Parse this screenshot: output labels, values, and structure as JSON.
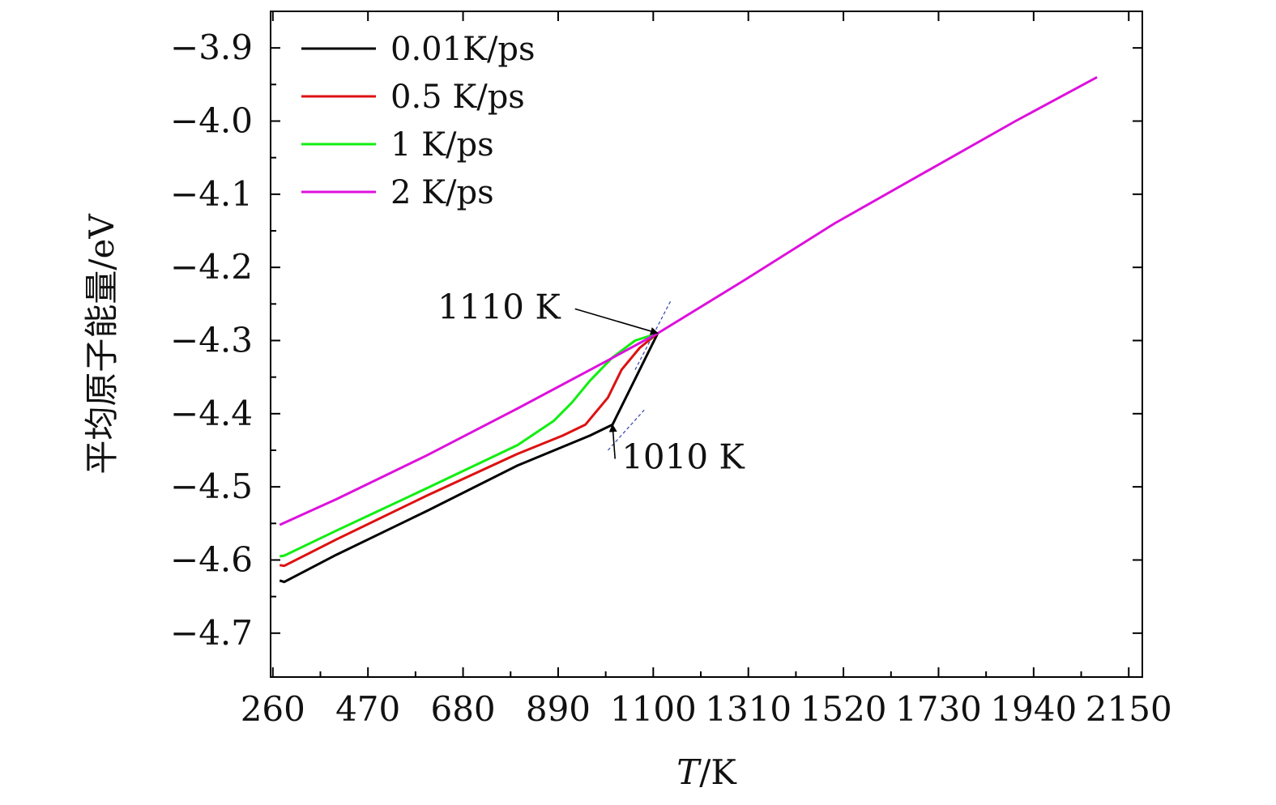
{
  "chart_data": {
    "type": "line",
    "xlabel_italic": "T",
    "xlabel_unit": "/K",
    "ylabel": "平均原子能量/eV",
    "xlim": [
      255,
      2180
    ],
    "ylim": [
      -4.76,
      -3.85
    ],
    "x_ticks": [
      260,
      470,
      680,
      890,
      1100,
      1310,
      1520,
      1730,
      1940,
      2150
    ],
    "x_tick_labels": [
      "260",
      "470",
      "680",
      "890",
      "1100",
      "1310",
      "1520",
      "1730",
      "1940",
      "2150"
    ],
    "y_ticks": [
      -3.9,
      -4.0,
      -4.1,
      -4.2,
      -4.3,
      -4.4,
      -4.5,
      -4.6,
      -4.7
    ],
    "y_tick_labels": [
      "−3.9",
      "−4.0",
      "−4.1",
      "−4.2",
      "−4.3",
      "−4.4",
      "−4.5",
      "−4.6",
      "−4.7"
    ],
    "legend_position": "top-left",
    "series": [
      {
        "name": "0.01K/ps",
        "color": "#000000",
        "points": [
          [
            275,
            -4.628
          ],
          [
            285,
            -4.63
          ],
          [
            400,
            -4.593
          ],
          [
            600,
            -4.533
          ],
          [
            800,
            -4.471
          ],
          [
            960,
            -4.43
          ],
          [
            1010,
            -4.415
          ],
          [
            1110,
            -4.29
          ]
        ]
      },
      {
        "name": "0.5 K/ps",
        "color": "#dd1111",
        "points": [
          [
            275,
            -4.607
          ],
          [
            285,
            -4.608
          ],
          [
            400,
            -4.572
          ],
          [
            600,
            -4.512
          ],
          [
            800,
            -4.455
          ],
          [
            900,
            -4.43
          ],
          [
            950,
            -4.415
          ],
          [
            1000,
            -4.378
          ],
          [
            1030,
            -4.34
          ],
          [
            1070,
            -4.31
          ],
          [
            1110,
            -4.29
          ]
        ]
      },
      {
        "name": "1 K/ps",
        "color": "#11ee11",
        "points": [
          [
            275,
            -4.595
          ],
          [
            285,
            -4.594
          ],
          [
            400,
            -4.56
          ],
          [
            600,
            -4.502
          ],
          [
            800,
            -4.443
          ],
          [
            880,
            -4.41
          ],
          [
            920,
            -4.385
          ],
          [
            960,
            -4.355
          ],
          [
            1010,
            -4.323
          ],
          [
            1060,
            -4.3
          ],
          [
            1110,
            -4.29
          ]
        ]
      },
      {
        "name": "2 K/ps",
        "color": "#dd11dd",
        "points": [
          [
            275,
            -4.552
          ],
          [
            400,
            -4.517
          ],
          [
            600,
            -4.457
          ],
          [
            800,
            -4.393
          ],
          [
            1000,
            -4.327
          ],
          [
            1110,
            -4.29
          ],
          [
            1300,
            -4.218
          ],
          [
            1500,
            -4.14
          ],
          [
            1700,
            -4.07
          ],
          [
            1900,
            -4.0
          ],
          [
            2080,
            -3.94
          ]
        ]
      }
    ],
    "guide_lines": [
      {
        "points": [
          [
            1060,
            -4.34
          ],
          [
            1140,
            -4.244
          ]
        ]
      },
      {
        "points": [
          [
            1000,
            -4.45
          ],
          [
            1080,
            -4.395
          ]
        ]
      }
    ],
    "annotations": [
      {
        "text": "1110 K",
        "point": [
          1110,
          -4.29
        ],
        "label_at": [
          895,
          -4.27
        ],
        "label_anchor": "end"
      },
      {
        "text": "1010 K",
        "point": [
          1010,
          -4.415
        ],
        "label_at": [
          1030,
          -4.475
        ],
        "label_anchor": "start"
      }
    ]
  }
}
